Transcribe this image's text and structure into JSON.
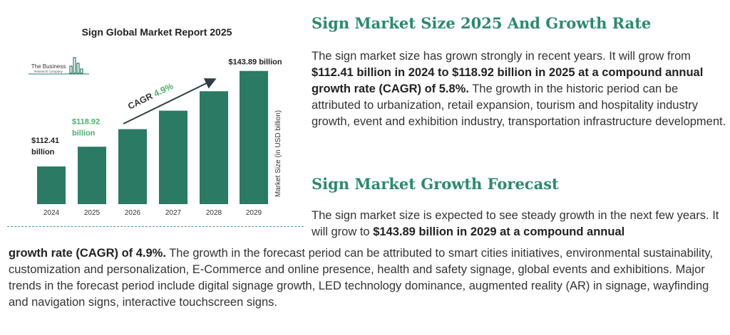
{
  "chart_data": {
    "type": "bar",
    "title": "Sign Global Market Report 2025",
    "categories": [
      "2024",
      "2025",
      "2026",
      "2027",
      "2028",
      "2029"
    ],
    "values": [
      112.41,
      118.92,
      124.7,
      130.8,
      137.2,
      143.89
    ],
    "ylabel": "Market Size (in USD billion)",
    "ylim": [
      100,
      145
    ],
    "grid": false,
    "bar_color": "#2a7a64",
    "data_labels": [
      {
        "line1": "$112.41",
        "line2": "billion",
        "color": "#222222"
      },
      {
        "line1": "$118.92",
        "line2": "billion",
        "color": "#4caf6e"
      },
      {
        "line1": "$143.89 billion",
        "line2": "",
        "color": "#222222"
      }
    ],
    "cagr_label": "CAGR",
    "cagr_value": "4.9%",
    "cagr_color": "#4caf6e",
    "logo_text": [
      "The Business",
      "Research Company"
    ]
  },
  "section1": {
    "heading": "Sign Market Size 2025 And Growth Rate",
    "p1_a": "The sign market size has grown strongly in recent years. It will grow from ",
    "p1_bold": "$112.41 billion in 2024 to $118.92 billion in 2025 at a compound annual growth rate (CAGR) of 5.8%.",
    "p1_c": " The growth in the historic period can be attributed to urbanization, retail expansion, tourism and hospitality industry growth, event and exhibition industry, transportation infrastructure development."
  },
  "section2": {
    "heading": "Sign Market Growth Forecast",
    "p2_a": "The sign market size is expected to see steady growth in the next few years. It will grow to ",
    "p2_bold_1": "$143.89 billion in 2029 at a compound annual",
    "p2_bold_2": "growth rate (CAGR) of 4.9%.",
    "p2_c": " The growth in the forecast period can be attributed to smart cities initiatives, environmental sustainability, customization and personalization, E-Commerce and online presence, health and safety signage, global events and exhibitions. Major trends in the forecast period include digital signage growth, LED technology dominance, augmented reality (AR) in signage, wayfinding and navigation signs, interactive touchscreen signs."
  }
}
